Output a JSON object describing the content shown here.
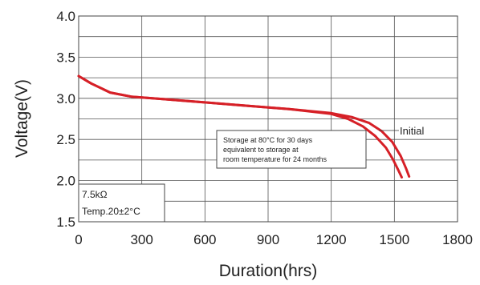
{
  "chart_data": {
    "type": "line",
    "title": "",
    "xlabel": "Duration(hrs)",
    "ylabel": "Voltage(V)",
    "xlim": [
      0,
      1800
    ],
    "ylim": [
      1.5,
      4.0
    ],
    "x_ticks": [
      "0",
      "300",
      "600",
      "900",
      "1200",
      "1500",
      "1800"
    ],
    "y_ticks": [
      "1.5",
      "2.0",
      "2.5",
      "3.0",
      "3.5",
      "4.0"
    ],
    "grid": true,
    "line_color": "#d62027",
    "series": [
      {
        "name": "Initial",
        "x": [
          0,
          60,
          150,
          250,
          400,
          600,
          800,
          1000,
          1200,
          1300,
          1380,
          1440,
          1490,
          1530,
          1555,
          1570
        ],
        "y": [
          3.27,
          3.18,
          3.07,
          3.02,
          2.99,
          2.95,
          2.91,
          2.87,
          2.82,
          2.77,
          2.7,
          2.6,
          2.47,
          2.3,
          2.15,
          2.05
        ]
      },
      {
        "name": "",
        "x": [
          0,
          60,
          150,
          250,
          400,
          600,
          800,
          1000,
          1200,
          1280,
          1350,
          1410,
          1460,
          1495,
          1520,
          1535
        ],
        "y": [
          3.27,
          3.18,
          3.07,
          3.02,
          2.99,
          2.95,
          2.91,
          2.87,
          2.81,
          2.75,
          2.66,
          2.54,
          2.4,
          2.25,
          2.12,
          2.04
        ]
      }
    ],
    "annotation_lines": [
      "Storage at 80°C for 30 days",
      "equivalent to storage at",
      "room temperature for 24 months"
    ],
    "conditions": [
      "7.5kΩ",
      "Temp.20±2°C"
    ]
  }
}
